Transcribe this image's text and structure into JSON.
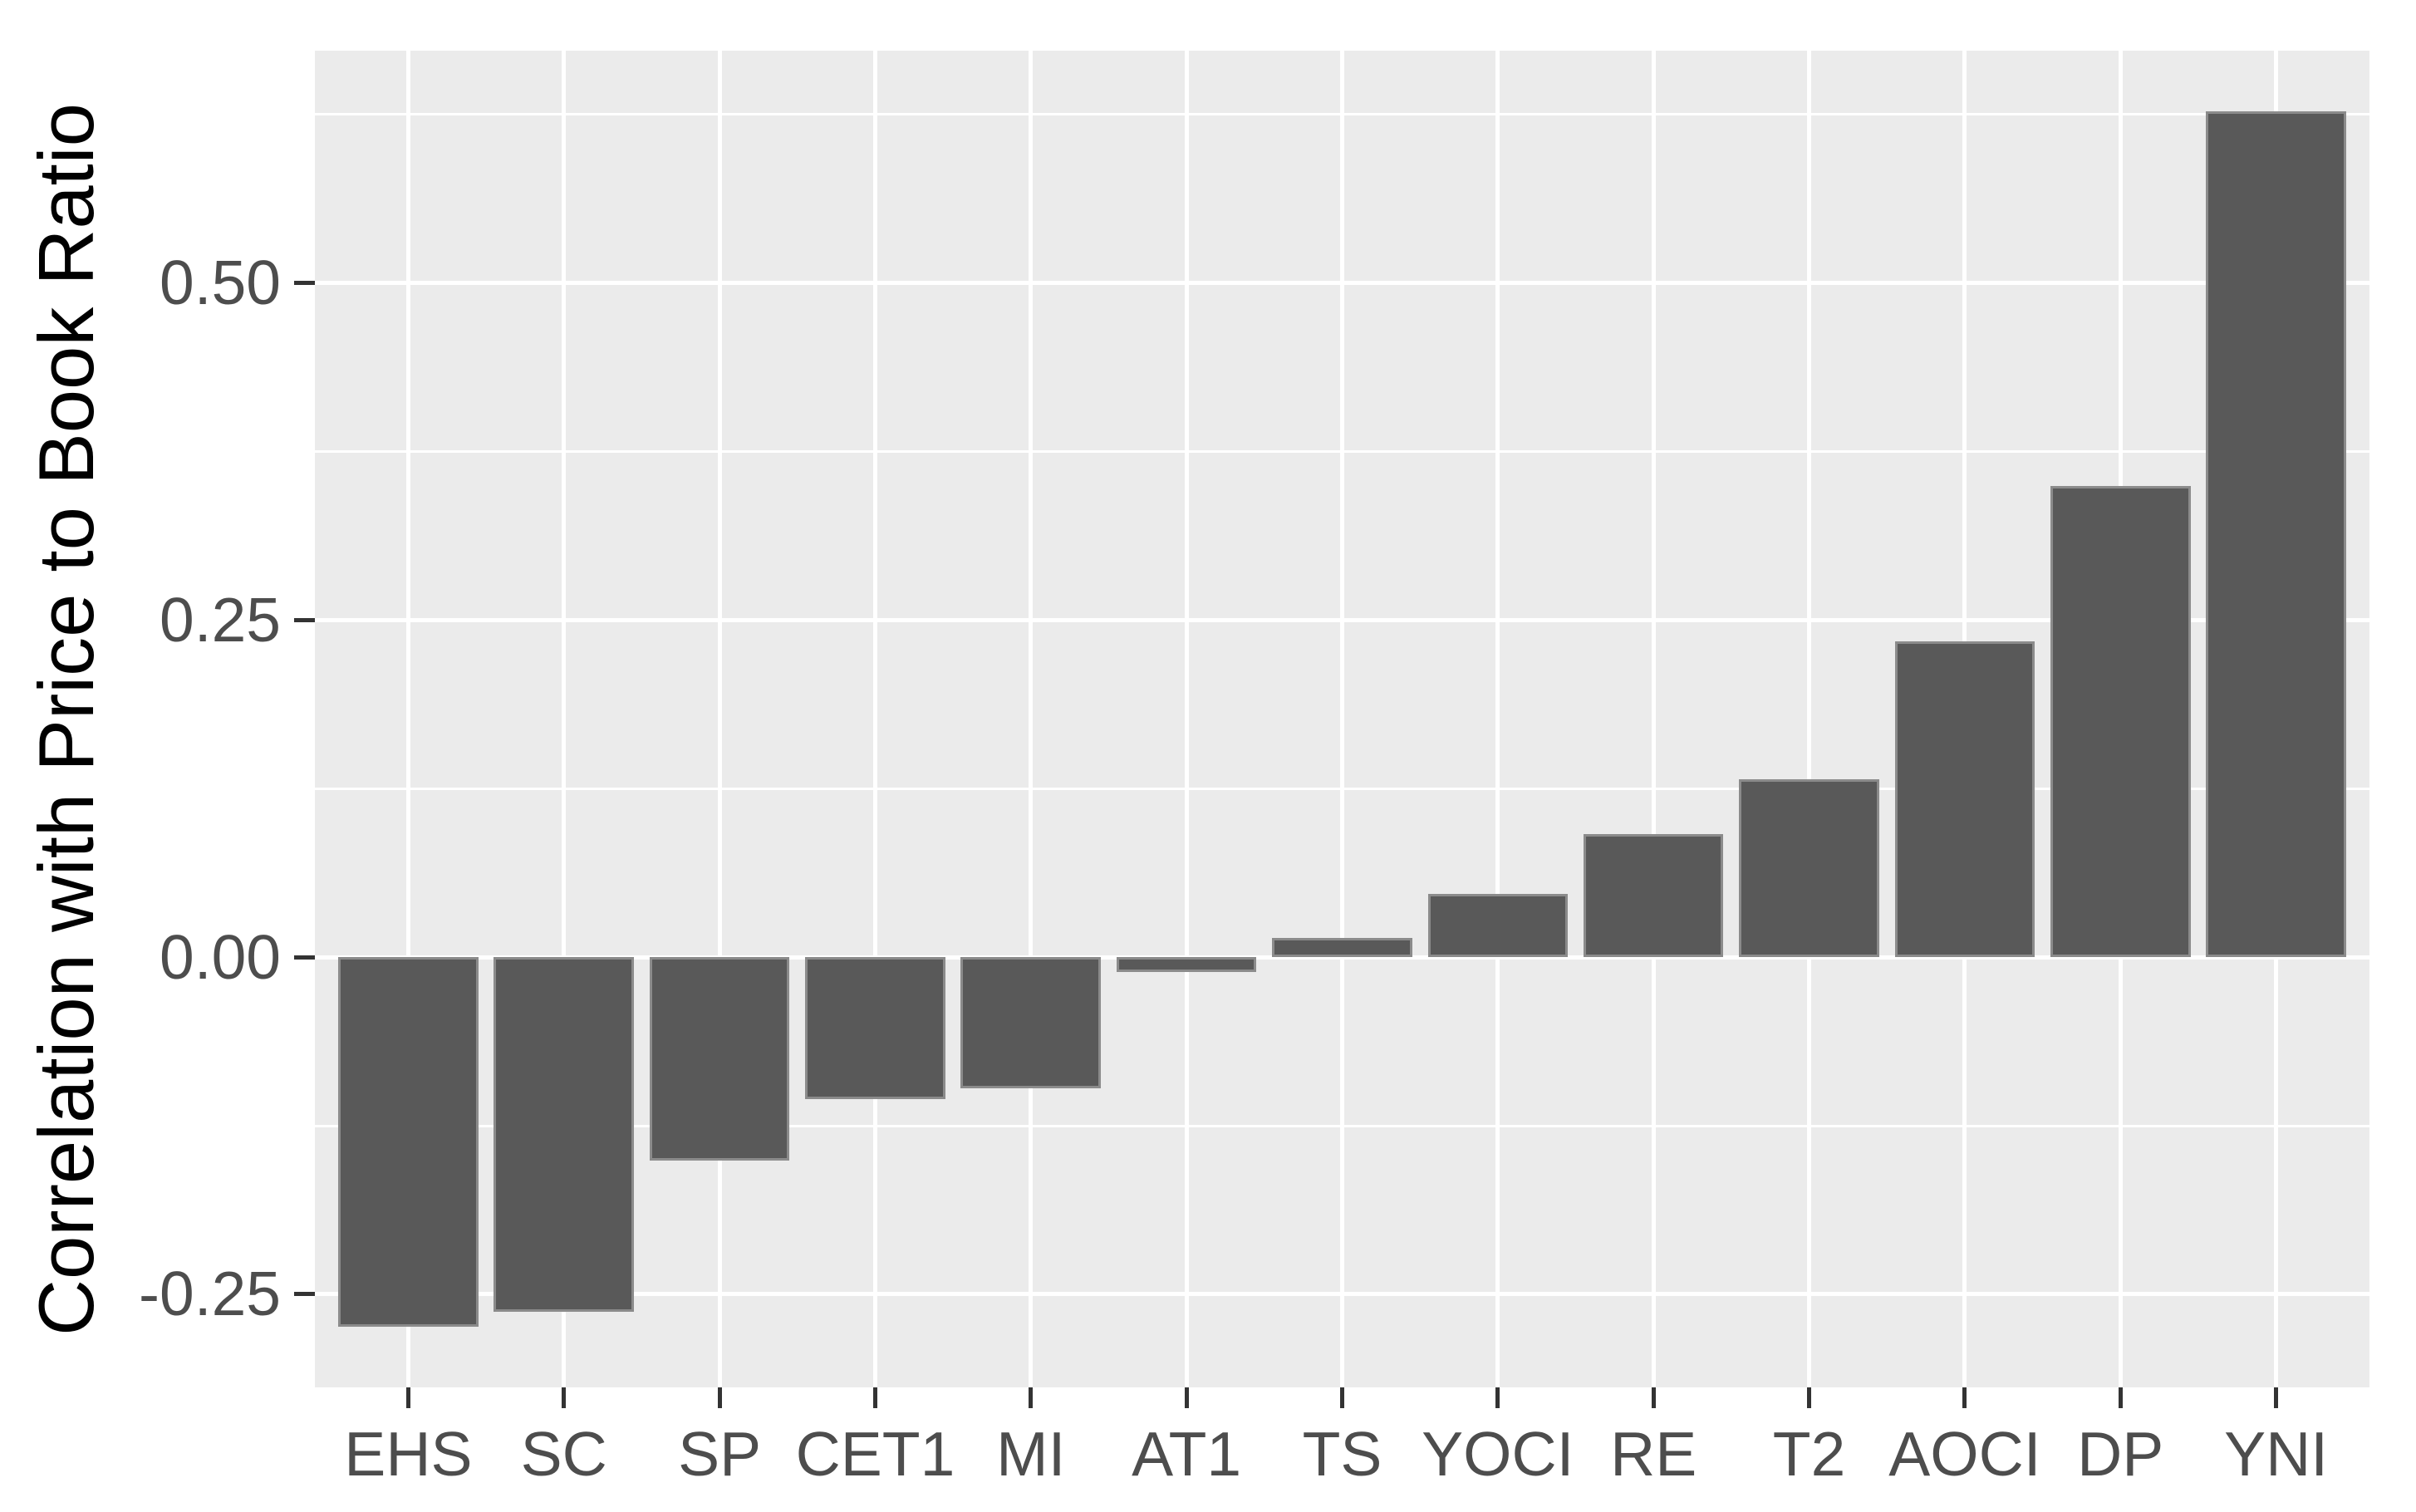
{
  "chart_data": {
    "type": "bar",
    "title": "",
    "xlabel": "",
    "ylabel": "Correlation with Price to Book Ratio",
    "categories": [
      "EHS",
      "SC",
      "SP",
      "CET1",
      "MI",
      "AT1",
      "TS",
      "YOCI",
      "RE",
      "T2",
      "AOCI",
      "DP",
      "YNI"
    ],
    "values": [
      -0.274,
      -0.263,
      -0.151,
      -0.105,
      -0.097,
      -0.011,
      0.014,
      0.047,
      0.091,
      0.132,
      0.234,
      0.349,
      0.627
    ],
    "ylim": [
      -0.319,
      0.672
    ],
    "y_major_ticks": [
      {
        "value": 0.5,
        "label": "0.50"
      },
      {
        "value": 0.25,
        "label": "0.25"
      },
      {
        "value": 0.0,
        "label": "0.00"
      },
      {
        "value": -0.25,
        "label": "-0.25"
      }
    ],
    "y_minor_ticks": [
      0.625,
      0.375,
      0.125,
      -0.125
    ],
    "bar_relative_width": 0.9,
    "grid": "on",
    "legend": "none",
    "colors": {
      "bar_fill": "#595959",
      "bar_border": "#8B8B8B",
      "panel_background": "#EBEBEB",
      "gridline": "#FFFFFF",
      "tick_mark": "#333333",
      "tick_label": "#4D4D4D",
      "axis_title": "#000000"
    }
  }
}
